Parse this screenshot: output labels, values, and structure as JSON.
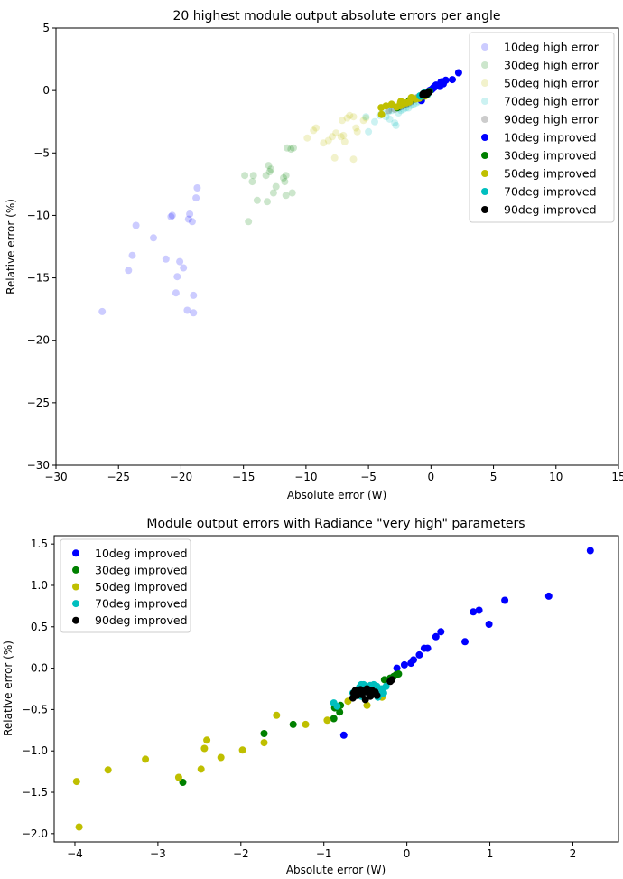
{
  "chart_data": [
    {
      "type": "scatter",
      "title": "20 highest module output absolute errors per angle",
      "xlabel": "Absolute error (W)",
      "ylabel": "Relative error (%)",
      "xlim": [
        -30,
        15
      ],
      "ylim": [
        -30,
        5
      ],
      "xticks": [
        "−30",
        "−25",
        "−20",
        "−15",
        "−10",
        "−5",
        "0",
        "5",
        "10",
        "15"
      ],
      "yticks": [
        "5",
        "0",
        "−5",
        "−10",
        "−15",
        "−20",
        "−25",
        "−30"
      ],
      "grid": false,
      "legend_position": "top-right",
      "series": [
        {
          "name": "10deg high error",
          "color": "#0000ff",
          "alpha": 0.2,
          "points": [
            [
              -26.3,
              -17.7
            ],
            [
              -24.2,
              -14.4
            ],
            [
              -23.9,
              -13.2
            ],
            [
              -23.6,
              -10.8
            ],
            [
              -22.2,
              -11.8
            ],
            [
              -21.2,
              -13.5
            ],
            [
              -20.8,
              -10.1
            ],
            [
              -20.7,
              -10.0
            ],
            [
              -20.3,
              -14.9
            ],
            [
              -20.4,
              -16.2
            ],
            [
              -20.1,
              -13.7
            ],
            [
              -19.8,
              -14.2
            ],
            [
              -19.5,
              -17.6
            ],
            [
              -19.4,
              -10.3
            ],
            [
              -19.3,
              -9.9
            ],
            [
              -19.1,
              -10.5
            ],
            [
              -19.0,
              -16.4
            ],
            [
              -19.0,
              -17.8
            ],
            [
              -18.8,
              -8.6
            ],
            [
              -18.7,
              -7.8
            ]
          ]
        },
        {
          "name": "30deg high error",
          "color": "#008000",
          "alpha": 0.2,
          "points": [
            [
              -14.9,
              -6.8
            ],
            [
              -14.6,
              -10.5
            ],
            [
              -14.3,
              -7.3
            ],
            [
              -14.2,
              -6.8
            ],
            [
              -13.9,
              -8.8
            ],
            [
              -13.2,
              -6.8
            ],
            [
              -13.1,
              -8.9
            ],
            [
              -13.0,
              -6.0
            ],
            [
              -12.9,
              -6.5
            ],
            [
              -12.8,
              -6.3
            ],
            [
              -12.6,
              -8.2
            ],
            [
              -12.4,
              -7.7
            ],
            [
              -11.8,
              -7.0
            ],
            [
              -11.6,
              -6.8
            ],
            [
              -11.7,
              -7.3
            ],
            [
              -11.6,
              -8.4
            ],
            [
              -11.5,
              -4.6
            ],
            [
              -11.2,
              -4.7
            ],
            [
              -11.1,
              -8.2
            ],
            [
              -11.0,
              -4.6
            ]
          ]
        },
        {
          "name": "50deg high error",
          "color": "#bfbf00",
          "alpha": 0.2,
          "points": [
            [
              -9.9,
              -3.8
            ],
            [
              -9.4,
              -3.2
            ],
            [
              -9.2,
              -3.0
            ],
            [
              -8.6,
              -4.2
            ],
            [
              -8.2,
              -4.0
            ],
            [
              -7.9,
              -3.7
            ],
            [
              -7.7,
              -5.4
            ],
            [
              -7.6,
              -3.4
            ],
            [
              -7.2,
              -3.7
            ],
            [
              -7.0,
              -3.6
            ],
            [
              -7.1,
              -2.4
            ],
            [
              -6.9,
              -4.1
            ],
            [
              -6.7,
              -2.2
            ],
            [
              -6.5,
              -2.0
            ],
            [
              -6.2,
              -5.5
            ],
            [
              -6.2,
              -2.1
            ],
            [
              -6.0,
              -3.0
            ],
            [
              -5.9,
              -3.3
            ],
            [
              -5.4,
              -2.4
            ],
            [
              -5.2,
              -2.2
            ]
          ]
        },
        {
          "name": "70deg high error",
          "color": "#00bfbf",
          "alpha": 0.2,
          "points": [
            [
              -5.2,
              -2.1
            ],
            [
              -5.0,
              -3.3
            ],
            [
              -4.5,
              -2.5
            ],
            [
              -4.1,
              -2.0
            ],
            [
              -3.9,
              -1.8
            ],
            [
              -3.6,
              -2.1
            ],
            [
              -3.4,
              -1.7
            ],
            [
              -3.3,
              -2.3
            ],
            [
              -3.1,
              -1.6
            ],
            [
              -2.9,
              -2.6
            ],
            [
              -2.8,
              -2.8
            ],
            [
              -2.6,
              -1.8
            ],
            [
              -2.4,
              -1.6
            ],
            [
              -2.2,
              -1.5
            ],
            [
              -2.0,
              -1.4
            ],
            [
              -1.8,
              -1.4
            ],
            [
              -1.6,
              -1.2
            ],
            [
              -1.4,
              -1.1
            ],
            [
              -1.2,
              -1.0
            ],
            [
              -1.0,
              -0.9
            ]
          ]
        },
        {
          "name": "90deg high error",
          "color": "#000000",
          "alpha": 0.2,
          "points": [
            [
              -3.4,
              -1.6
            ],
            [
              -2.9,
              -1.5
            ],
            [
              -2.6,
              -1.4
            ],
            [
              -2.4,
              -1.3
            ],
            [
              -2.2,
              -1.2
            ],
            [
              -2.0,
              -1.1
            ],
            [
              -1.8,
              -1.0
            ],
            [
              -1.6,
              -0.9
            ],
            [
              -1.5,
              -0.8
            ],
            [
              -1.3,
              -0.7
            ],
            [
              -1.2,
              -0.6
            ],
            [
              -1.0,
              -0.5
            ],
            [
              -0.9,
              -0.5
            ],
            [
              -0.8,
              -0.4
            ],
            [
              -0.7,
              -0.4
            ],
            [
              -0.6,
              -0.3
            ],
            [
              -0.5,
              -0.3
            ],
            [
              -0.4,
              -0.3
            ],
            [
              -0.3,
              -0.2
            ],
            [
              -0.2,
              -0.2
            ]
          ]
        },
        {
          "name": "10deg improved",
          "color": "#0000ff",
          "alpha": 1.0,
          "points": [
            [
              -0.76,
              -0.81
            ],
            [
              -0.12,
              0.0
            ],
            [
              -0.03,
              0.04
            ],
            [
              0.05,
              0.06
            ],
            [
              0.08,
              0.1
            ],
            [
              0.15,
              0.16
            ],
            [
              0.21,
              0.24
            ],
            [
              0.25,
              0.24
            ],
            [
              0.35,
              0.38
            ],
            [
              0.41,
              0.44
            ],
            [
              0.7,
              0.32
            ],
            [
              0.8,
              0.68
            ],
            [
              0.87,
              0.7
            ],
            [
              0.99,
              0.53
            ],
            [
              1.18,
              0.82
            ],
            [
              1.71,
              0.87
            ],
            [
              2.21,
              1.42
            ]
          ]
        },
        {
          "name": "30deg improved",
          "color": "#008000",
          "alpha": 1.0,
          "points": [
            [
              -2.7,
              -1.38
            ],
            [
              -1.72,
              -0.79
            ],
            [
              -1.37,
              -0.68
            ],
            [
              -0.88,
              -0.61
            ],
            [
              -0.87,
              -0.48
            ],
            [
              -0.81,
              -0.53
            ],
            [
              -0.8,
              -0.45
            ],
            [
              -0.27,
              -0.14
            ],
            [
              -0.2,
              -0.12
            ],
            [
              -0.16,
              -0.1
            ],
            [
              -0.13,
              -0.08
            ],
            [
              -0.1,
              -0.07
            ]
          ]
        },
        {
          "name": "50deg improved",
          "color": "#bfbf00",
          "alpha": 1.0,
          "points": [
            [
              -3.98,
              -1.37
            ],
            [
              -3.95,
              -1.92
            ],
            [
              -3.6,
              -1.23
            ],
            [
              -3.15,
              -1.1
            ],
            [
              -2.75,
              -1.32
            ],
            [
              -2.48,
              -1.22
            ],
            [
              -2.44,
              -0.97
            ],
            [
              -2.41,
              -0.87
            ],
            [
              -2.24,
              -1.08
            ],
            [
              -1.98,
              -0.99
            ],
            [
              -1.72,
              -0.9
            ],
            [
              -1.57,
              -0.57
            ],
            [
              -1.22,
              -0.68
            ],
            [
              -0.96,
              -0.63
            ],
            [
              -0.71,
              -0.4
            ],
            [
              -0.48,
              -0.45
            ],
            [
              -0.3,
              -0.35
            ]
          ]
        },
        {
          "name": "70deg improved",
          "color": "#00bfbf",
          "alpha": 1.0,
          "points": [
            [
              -0.88,
              -0.42
            ],
            [
              -0.84,
              -0.46
            ],
            [
              -0.65,
              -0.3
            ],
            [
              -0.6,
              -0.27
            ],
            [
              -0.57,
              -0.23
            ],
            [
              -0.55,
              -0.34
            ],
            [
              -0.52,
              -0.2
            ],
            [
              -0.5,
              -0.28
            ],
            [
              -0.47,
              -0.25
            ],
            [
              -0.44,
              -0.21
            ],
            [
              -0.42,
              -0.3
            ],
            [
              -0.4,
              -0.2
            ],
            [
              -0.38,
              -0.26
            ],
            [
              -0.36,
              -0.22
            ],
            [
              -0.33,
              -0.32
            ],
            [
              -0.3,
              -0.25
            ],
            [
              -0.28,
              -0.3
            ],
            [
              -0.25,
              -0.22
            ],
            [
              -0.35,
              -0.35
            ],
            [
              -0.55,
              -0.2
            ]
          ]
        },
        {
          "name": "90deg improved",
          "color": "#000000",
          "alpha": 1.0,
          "points": [
            [
              -0.65,
              -0.36
            ],
            [
              -0.64,
              -0.3
            ],
            [
              -0.62,
              -0.27
            ],
            [
              -0.6,
              -0.33
            ],
            [
              -0.58,
              -0.29
            ],
            [
              -0.56,
              -0.26
            ],
            [
              -0.54,
              -0.32
            ],
            [
              -0.52,
              -0.28
            ],
            [
              -0.5,
              -0.38
            ],
            [
              -0.48,
              -0.25
            ],
            [
              -0.46,
              -0.3
            ],
            [
              -0.44,
              -0.34
            ],
            [
              -0.42,
              -0.27
            ],
            [
              -0.4,
              -0.31
            ],
            [
              -0.38,
              -0.29
            ],
            [
              -0.36,
              -0.33
            ],
            [
              -0.2,
              -0.16
            ],
            [
              -0.18,
              -0.14
            ]
          ]
        }
      ]
    },
    {
      "type": "scatter",
      "title": "Module output errors with Radiance \"very high\" parameters",
      "xlabel": "Absolute error (W)",
      "ylabel": "Relative error (%)",
      "xlim": [
        -4.25,
        2.55
      ],
      "ylim": [
        -2.1,
        1.6
      ],
      "xticks": [
        "−4",
        "−3",
        "−2",
        "−1",
        "0",
        "1",
        "2"
      ],
      "yticks": [
        "1.5",
        "1.0",
        "0.5",
        "0.0",
        "−0.5",
        "−1.0",
        "−1.5",
        "−2.0"
      ],
      "grid": false,
      "legend_position": "top-left",
      "series_ref": [
        "10deg improved",
        "30deg improved",
        "50deg improved",
        "70deg improved",
        "90deg improved"
      ]
    }
  ]
}
